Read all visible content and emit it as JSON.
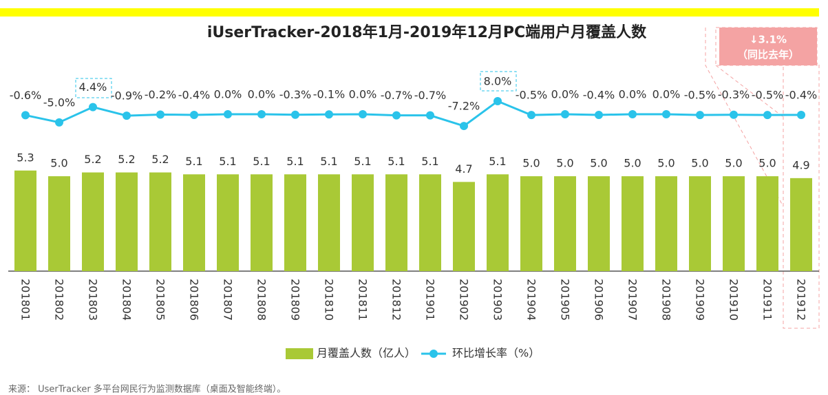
{
  "chart_data": {
    "type": "bar_line",
    "title": "iUserTracker-2018年1月-2019年12月PC端用户月覆盖人数",
    "categories": [
      "201801",
      "201802",
      "201803",
      "201804",
      "201805",
      "201806",
      "201807",
      "201808",
      "201809",
      "201810",
      "201811",
      "201812",
      "201901",
      "201902",
      "201903",
      "201904",
      "201905",
      "201906",
      "201907",
      "201908",
      "201909",
      "201910",
      "201911",
      "201912"
    ],
    "series": [
      {
        "name": "月覆盖人数（亿人）",
        "color": "#a9c936",
        "values": [
          5.3,
          5.0,
          5.2,
          5.2,
          5.2,
          5.1,
          5.1,
          5.1,
          5.1,
          5.1,
          5.1,
          5.1,
          5.1,
          4.7,
          5.1,
          5.0,
          5.0,
          5.0,
          5.0,
          5.0,
          5.0,
          5.0,
          5.0,
          4.9
        ],
        "value_labels": [
          "5.3",
          "5.0",
          "5.2",
          "5.2",
          "5.2",
          "5.1",
          "5.1",
          "5.1",
          "5.1",
          "5.1",
          "5.1",
          "5.1",
          "5.1",
          "4.7",
          "5.1",
          "5.0",
          "5.0",
          "5.0",
          "5.0",
          "5.0",
          "5.0",
          "5.0",
          "5.0",
          "4.9"
        ]
      },
      {
        "name": "环比增长率（%）",
        "color": "#2ac3ea",
        "axis": "y2",
        "values": [
          -0.6,
          -5.0,
          4.4,
          -0.9,
          -0.2,
          -0.4,
          0.0,
          0.0,
          -0.3,
          -0.1,
          0.0,
          -0.7,
          -0.7,
          -7.2,
          8.0,
          -0.5,
          0.0,
          -0.4,
          0.0,
          0.0,
          -0.5,
          -0.3,
          -0.5,
          -0.4
        ],
        "value_labels": [
          "-0.6%",
          "-5.0%",
          "4.4%",
          "-0.9%",
          "-0.2%",
          "-0.4%",
          "0.0%",
          "0.0%",
          "-0.3%",
          "-0.1%",
          "0.0%",
          "-0.7%",
          "-0.7%",
          "-7.2%",
          "8.0%",
          "-0.5%",
          "0.0%",
          "-0.4%",
          "0.0%",
          "0.0%",
          "-0.5%",
          "-0.3%",
          "-0.5%",
          "-0.4%"
        ]
      }
    ],
    "ylim": [
      0,
      12
    ],
    "y2lim": [
      -10,
      10
    ],
    "annotations": [
      "↓3.1%",
      "（同比去年）"
    ],
    "source": "来源： UserTracker 多平台网民行为监测数据库（桌面及智能终端）。"
  }
}
